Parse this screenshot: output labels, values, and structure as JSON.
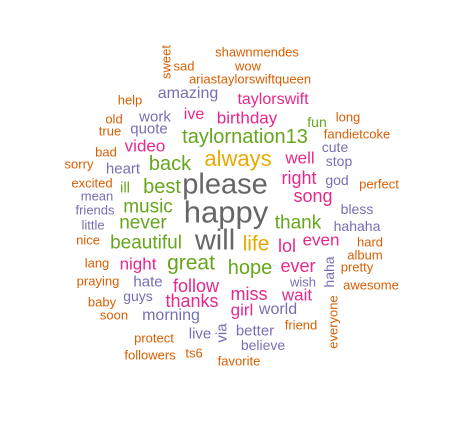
{
  "palette": {
    "orange": "#d95f02",
    "purple": "#7570b3",
    "magenta": "#e7298a",
    "green": "#66a61e",
    "gold": "#e6ab02",
    "gray": "#666666"
  },
  "words": [
    "sweet",
    "shawnmendes",
    "sad",
    "wow",
    "ariastaylorswiftqueen",
    "help",
    "amazing",
    "taylorswift",
    "old",
    "work",
    "ive",
    "birthday",
    "long",
    "true",
    "quote",
    "fun",
    "fandietcoke",
    "taylornation13",
    "bad",
    "video",
    "cute",
    "sorry",
    "back",
    "always",
    "well",
    "stop",
    "heart",
    "excited",
    "please",
    "right",
    "god",
    "perfect",
    "mean",
    "ill",
    "best",
    "song",
    "friends",
    "music",
    "happy",
    "bless",
    "little",
    "never",
    "thank",
    "hahaha",
    "nice",
    "beautiful",
    "will",
    "life",
    "lol",
    "even",
    "hard",
    "album",
    "lang",
    "night",
    "hate",
    "great",
    "hope",
    "ever",
    "haha",
    "pretty",
    "praying",
    "follow",
    "awesome",
    "guys",
    "miss",
    "wait",
    "baby",
    "thanks",
    "girl",
    "world",
    "soon",
    "morning",
    "wish",
    "friend",
    "via",
    "live",
    "better",
    "everyone",
    "protect",
    "believe",
    "followers",
    "ts6",
    "favorite"
  ]
}
